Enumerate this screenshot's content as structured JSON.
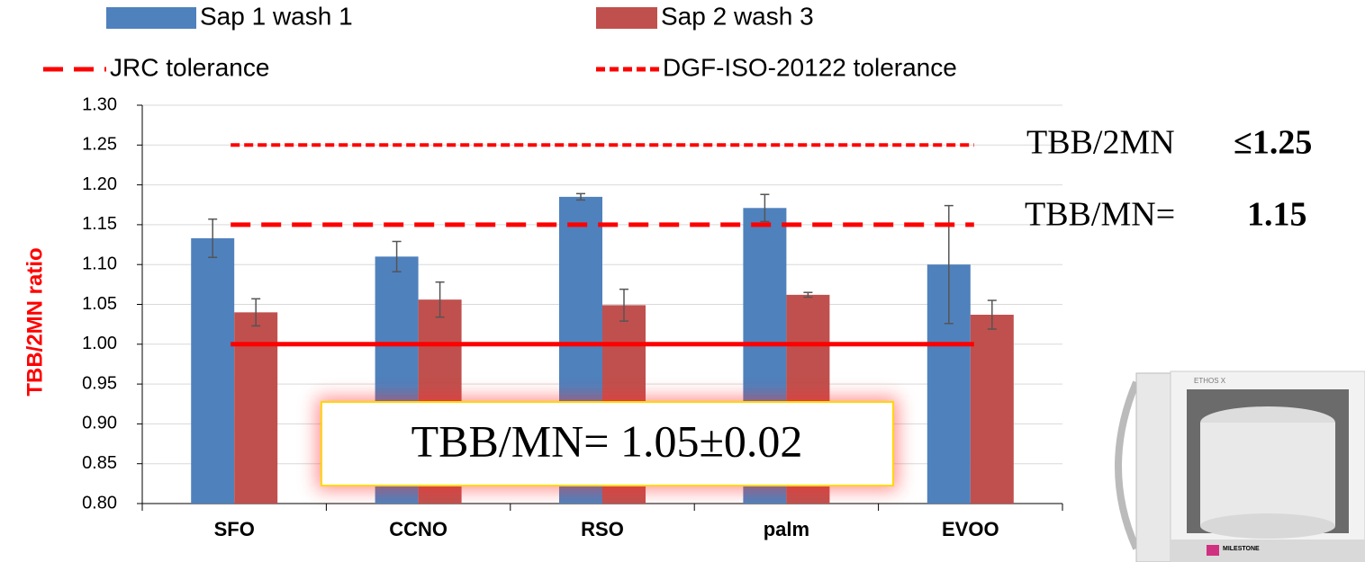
{
  "chart_data": {
    "type": "bar",
    "y_label": "TBB/2MN ratio",
    "categories": [
      "SFO",
      "CCNO",
      "RSO",
      "palm",
      "EVOO"
    ],
    "series": [
      {
        "name": "Sap 1 wash 1",
        "color": "#4f81bd",
        "values": [
          1.133,
          1.11,
          1.185,
          1.171,
          1.1
        ],
        "errors": [
          0.024,
          0.019,
          0.004,
          0.017,
          0.074
        ]
      },
      {
        "name": "Sap 2 wash 3",
        "color": "#c0504d",
        "values": [
          1.04,
          1.056,
          1.049,
          1.062,
          1.037
        ],
        "errors": [
          0.017,
          0.022,
          0.02,
          0.003,
          0.018
        ]
      }
    ],
    "lines": [
      {
        "name": "JRC tolerance",
        "value": 1.15,
        "color": "#ff0000",
        "dash": "long"
      },
      {
        "name": "DGF-ISO-20122 tolerance",
        "value": 1.25,
        "color": "#ff0000",
        "dash": "short"
      },
      {
        "value": 1.0,
        "color": "#ff0000",
        "dash": "solid"
      }
    ],
    "ylim": [
      0.8,
      1.3
    ],
    "yticks": [
      {
        "value": 0.8,
        "label": "0.80"
      },
      {
        "value": 0.85,
        "label": "0.85"
      },
      {
        "value": 0.9,
        "label": "0.90"
      },
      {
        "value": 0.95,
        "label": "0.95"
      },
      {
        "value": 1.0,
        "label": "1.00"
      },
      {
        "value": 1.05,
        "label": "1.05"
      },
      {
        "value": 1.1,
        "label": "1.10"
      },
      {
        "value": 1.15,
        "label": "1.15"
      },
      {
        "value": 1.2,
        "label": "1.20"
      },
      {
        "value": 1.25,
        "label": "1.25"
      },
      {
        "value": 1.3,
        "label": "1.30"
      }
    ],
    "grid": true,
    "annotations": {
      "limit_2mn": {
        "label": "TBB/2MN",
        "value": "≤1.25"
      },
      "limit_mn": {
        "label": "TBB/MN=",
        "value": "1.15"
      },
      "result": "TBB/MN= 1.05±0.02",
      "device_model": "ETHOS X",
      "device_brand": "MILESTONE"
    }
  }
}
